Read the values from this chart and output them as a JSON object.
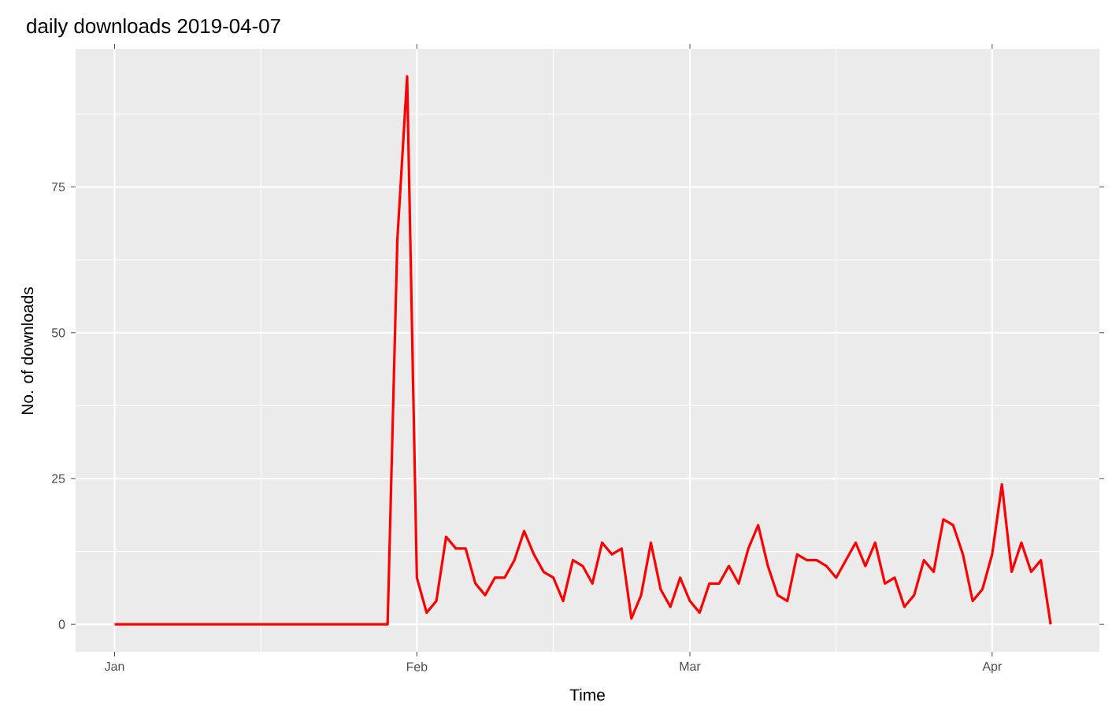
{
  "chart_data": {
    "type": "line",
    "title": "daily downloads 2019-04-07",
    "xlabel": "Time",
    "ylabel": "No. of downloads",
    "x": [
      "2019-01-01",
      "2019-01-29",
      "2019-01-30",
      "2019-01-31",
      "2019-02-01",
      "2019-02-02",
      "2019-02-03",
      "2019-02-04",
      "2019-02-05",
      "2019-02-06",
      "2019-02-07",
      "2019-02-08",
      "2019-02-09",
      "2019-02-10",
      "2019-02-11",
      "2019-02-12",
      "2019-02-13",
      "2019-02-14",
      "2019-02-15",
      "2019-02-16",
      "2019-02-17",
      "2019-02-18",
      "2019-02-19",
      "2019-02-20",
      "2019-02-21",
      "2019-02-22",
      "2019-02-23",
      "2019-02-24",
      "2019-02-25",
      "2019-02-26",
      "2019-02-27",
      "2019-02-28",
      "2019-03-01",
      "2019-03-02",
      "2019-03-03",
      "2019-03-04",
      "2019-03-05",
      "2019-03-06",
      "2019-03-07",
      "2019-03-08",
      "2019-03-09",
      "2019-03-10",
      "2019-03-11",
      "2019-03-12",
      "2019-03-13",
      "2019-03-14",
      "2019-03-15",
      "2019-03-16",
      "2019-03-17",
      "2019-03-18",
      "2019-03-19",
      "2019-03-20",
      "2019-03-21",
      "2019-03-22",
      "2019-03-23",
      "2019-03-24",
      "2019-03-25",
      "2019-03-26",
      "2019-03-27",
      "2019-03-28",
      "2019-03-29",
      "2019-03-30",
      "2019-03-31",
      "2019-04-01",
      "2019-04-02",
      "2019-04-03",
      "2019-04-04",
      "2019-04-05",
      "2019-04-06",
      "2019-04-07"
    ],
    "values": [
      0,
      0,
      66,
      94,
      8,
      2,
      4,
      15,
      13,
      13,
      7,
      5,
      8,
      8,
      11,
      16,
      12,
      9,
      8,
      4,
      11,
      10,
      7,
      14,
      12,
      13,
      1,
      5,
      14,
      6,
      3,
      8,
      4,
      2,
      7,
      7,
      10,
      7,
      13,
      17,
      10,
      5,
      4,
      12,
      11,
      11,
      10,
      8,
      11,
      14,
      10,
      14,
      7,
      8,
      3,
      5,
      11,
      9,
      18,
      17,
      12,
      4,
      6,
      12,
      24,
      9,
      14,
      9,
      11,
      0
    ],
    "color": "#ff0000",
    "xlim": [
      "2018-12-28",
      "2019-04-12"
    ],
    "xticks": [
      {
        "value": "2019-01-01",
        "label": "Jan"
      },
      {
        "value": "2019-01-16",
        "label": null
      },
      {
        "value": "2019-02-01",
        "label": "Feb"
      },
      {
        "value": "2019-02-15",
        "label": null
      },
      {
        "value": "2019-03-01",
        "label": "Mar"
      },
      {
        "value": "2019-03-16",
        "label": null
      },
      {
        "value": "2019-04-01",
        "label": "Apr"
      }
    ],
    "ylim": [
      -4.7,
      98.7
    ],
    "yticks": [
      0,
      {
        "value": 12.5,
        "label": null
      },
      25,
      {
        "value": 37.5,
        "label": null
      },
      50,
      {
        "value": 62.5,
        "label": null
      },
      75,
      {
        "value": 87.5,
        "label": null
      }
    ],
    "grid": true,
    "marker": "none",
    "line_style": "solid"
  }
}
